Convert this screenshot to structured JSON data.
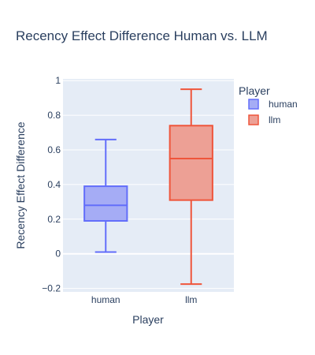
{
  "chart_data": {
    "type": "box",
    "title": "Recency Effect Difference Human vs. LLM",
    "xlabel": "Player",
    "ylabel": "Recency Effect Difference",
    "categories": [
      "human",
      "llm"
    ],
    "ylim": [
      -0.22,
      1.01
    ],
    "yticks": [
      -0.2,
      0,
      0.2,
      0.4,
      0.6,
      0.8,
      1
    ],
    "ytick_labels": [
      "−0.2",
      "0",
      "0.2",
      "0.4",
      "0.6",
      "0.8",
      "1"
    ],
    "grid": true,
    "legend": {
      "title": "Player",
      "position": "right"
    },
    "series": [
      {
        "name": "human",
        "category": "human",
        "color": "#636efa",
        "fill": "#a5acf5",
        "min": 0.01,
        "q1": 0.19,
        "median": 0.28,
        "q3": 0.39,
        "max": 0.66
      },
      {
        "name": "llm",
        "category": "llm",
        "color": "#ef553b",
        "fill": "#eda095",
        "min": -0.175,
        "q1": 0.31,
        "median": 0.55,
        "q3": 0.74,
        "max": 0.95
      }
    ]
  }
}
